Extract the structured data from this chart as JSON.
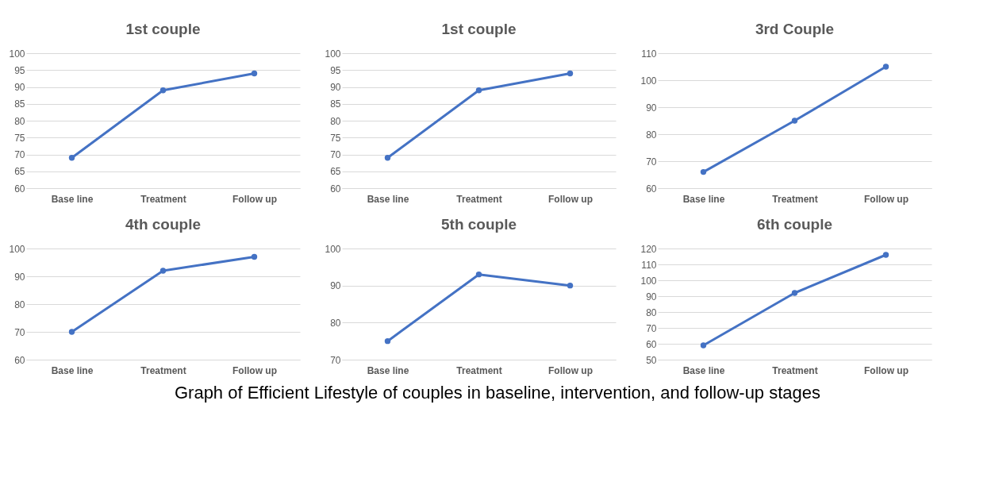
{
  "chart_data": [
    {
      "type": "line",
      "title": "1st couple",
      "categories": [
        "Base line",
        "Treatment",
        "Follow up"
      ],
      "series": [
        {
          "color": "#4472c4",
          "values": [
            69,
            89,
            94
          ]
        }
      ],
      "ylim": [
        60,
        100
      ],
      "yticks": [
        60,
        65,
        70,
        75,
        80,
        85,
        90,
        95,
        100
      ],
      "grid": "y",
      "marker": "circle"
    },
    {
      "type": "line",
      "title": "1st couple",
      "categories": [
        "Base line",
        "Treatment",
        "Follow up"
      ],
      "series": [
        {
          "color": "#4472c4",
          "values": [
            69,
            89,
            94
          ]
        }
      ],
      "ylim": [
        60,
        100
      ],
      "yticks": [
        60,
        65,
        70,
        75,
        80,
        85,
        90,
        95,
        100
      ],
      "grid": "y",
      "marker": "circle"
    },
    {
      "type": "line",
      "title": "3rd Couple",
      "categories": [
        "Base line",
        "Treatment",
        "Follow up"
      ],
      "series": [
        {
          "color": "#4472c4",
          "values": [
            66,
            85,
            105
          ]
        }
      ],
      "ylim": [
        60,
        110
      ],
      "yticks": [
        60,
        70,
        80,
        90,
        100,
        110
      ],
      "grid": "y",
      "marker": "circle"
    },
    {
      "type": "line",
      "title": "4th couple",
      "categories": [
        "Base line",
        "Treatment",
        "Follow up"
      ],
      "series": [
        {
          "color": "#4472c4",
          "values": [
            70,
            92,
            97
          ]
        }
      ],
      "ylim": [
        60,
        100
      ],
      "yticks": [
        60,
        70,
        80,
        90,
        100
      ],
      "grid": "y",
      "marker": "circle"
    },
    {
      "type": "line",
      "title": "5th couple",
      "categories": [
        "Base line",
        "Treatment",
        "Follow up"
      ],
      "series": [
        {
          "color": "#4472c4",
          "values": [
            75,
            93,
            90
          ]
        }
      ],
      "ylim": [
        70,
        100
      ],
      "yticks": [
        70,
        80,
        90,
        100
      ],
      "grid": "y",
      "marker": "circle"
    },
    {
      "type": "line",
      "title": "6th couple",
      "categories": [
        "Base line",
        "Treatment",
        "Follow up"
      ],
      "series": [
        {
          "color": "#4472c4",
          "values": [
            59,
            92,
            116
          ]
        }
      ],
      "ylim": [
        50,
        120
      ],
      "yticks": [
        50,
        60,
        70,
        80,
        90,
        100,
        110,
        120
      ],
      "grid": "y",
      "marker": "circle",
      "annotations": [
        "Graph of Efficient Lifestyle of couples in baseline, intervention, and follow-up stages"
      ]
    }
  ]
}
